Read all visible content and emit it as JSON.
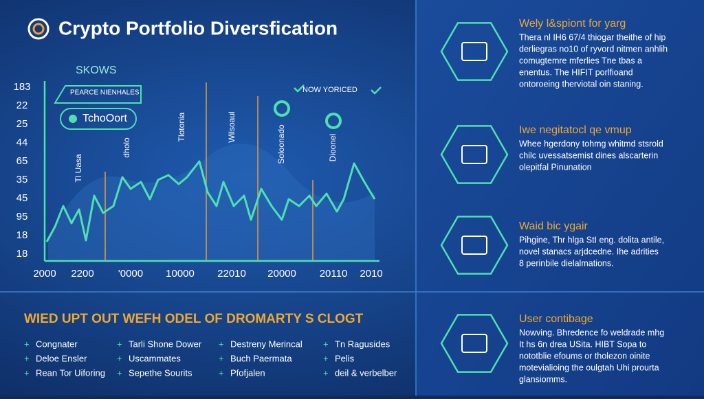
{
  "header": {
    "title": "Crypto Portfolio Diversfication"
  },
  "chart": {
    "label_top": "SKOWS",
    "box_label": "PEARCE NIENHALES",
    "pill_label": "TchoOort",
    "marker_label": "NOW YORICED",
    "column_labels": [
      "Tl Uasa",
      "dholo",
      "Tlotonia",
      "Wilsoaul",
      "Soloonado",
      "Dioonel"
    ],
    "y_labels": [
      "183",
      "22",
      "25",
      "44",
      "65",
      "35",
      "45",
      "95",
      "18",
      "18"
    ],
    "x_labels": [
      "2000",
      "2200",
      "'0000",
      "10000",
      "22010",
      "20000",
      "20110",
      "2010"
    ]
  },
  "bottom": {
    "heading": "WIED UPT OUT WEFH ODEL OF DROMARTY S CLOGT",
    "columns": [
      [
        "Congnater",
        "Deloe Ensler",
        "Rean Tor Uiforing"
      ],
      [
        "Tarli Shone Dower",
        "Uscammates",
        "Sepethe Sourits"
      ],
      [
        "Destreny Merincal",
        "Buch Paermata",
        "Pfofjalen"
      ],
      [
        "Tn Ragusides",
        "Pelis",
        "deil & verbelber"
      ]
    ]
  },
  "side": {
    "items": [
      {
        "heading": "Wely l&spiont for yarg",
        "lines": [
          "Thera nl IH6 67/4 thiogar theithe of hip",
          "derliegras no10 of ryvord nitmen anhlih",
          "comugtemre mferlies Tne tbas a",
          "enentus. The HIFIT porlfioand",
          "ontoroeing therviotal oin staning."
        ]
      },
      {
        "heading": "Iwe negitatocl qe vmup",
        "lines": [
          "Whee hgerdony tohmg whitmd stsrold",
          "chilc uvessatsemist dines alscarterin",
          "olepitfal Pinunation"
        ]
      },
      {
        "heading": "Waid bic ygair",
        "lines": [
          "Pihgine, Thr hlga StI eng. dolita antile,",
          "novel stanacs arjdcedne. Ihe adrities",
          "8 perinbile dielalmations."
        ]
      },
      {
        "heading": "User contibage",
        "lines": [
          "Nowving. Bhredence fo weldrade mhg",
          "It hs 6n drea USita. HIBT Sopa to",
          "nototblie efoums or tholezon oinite",
          "motevialioing the oulgtah Uhi prourta",
          "glansiomms."
        ]
      }
    ]
  }
}
